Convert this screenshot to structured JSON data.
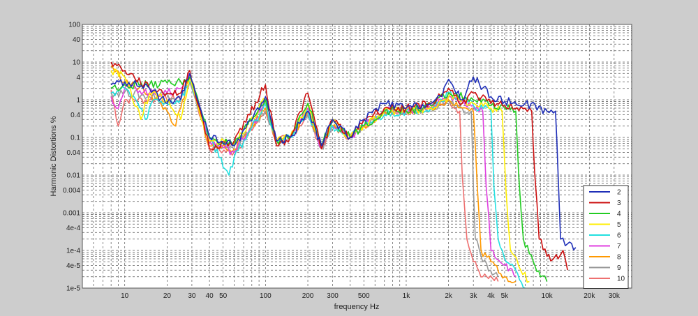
{
  "chart_data": {
    "type": "line",
    "xlabel": "frequency  Hz",
    "ylabel": "Harmonic Distortions %",
    "xscale": "log",
    "yscale": "log",
    "xlim": [
      5,
      40000
    ],
    "ylim": [
      1e-05,
      100
    ],
    "grid": true,
    "legend_position": "bottom-right",
    "x_ticks": [
      {
        "v": 10,
        "label": "10"
      },
      {
        "v": 20,
        "label": "20"
      },
      {
        "v": 30,
        "label": "30"
      },
      {
        "v": 40,
        "label": "40"
      },
      {
        "v": 50,
        "label": "50"
      },
      {
        "v": 100,
        "label": "100"
      },
      {
        "v": 200,
        "label": "200"
      },
      {
        "v": 300,
        "label": "300"
      },
      {
        "v": 500,
        "label": "500"
      },
      {
        "v": 1000,
        "label": "1k"
      },
      {
        "v": 2000,
        "label": "2k"
      },
      {
        "v": 3000,
        "label": "3k"
      },
      {
        "v": 4000,
        "label": "4k"
      },
      {
        "v": 5000,
        "label": "5k"
      },
      {
        "v": 10000,
        "label": "10k"
      },
      {
        "v": 20000,
        "label": "20k"
      },
      {
        "v": 30000,
        "label": "30k"
      }
    ],
    "y_ticks": [
      {
        "v": 100,
        "label": "100"
      },
      {
        "v": 40,
        "label": "40"
      },
      {
        "v": 10,
        "label": "10"
      },
      {
        "v": 4,
        "label": "4"
      },
      {
        "v": 1,
        "label": "1"
      },
      {
        "v": 0.4,
        "label": "0.4"
      },
      {
        "v": 0.1,
        "label": "0.1"
      },
      {
        "v": 0.04,
        "label": "0.04"
      },
      {
        "v": 0.01,
        "label": "0.01"
      },
      {
        "v": 0.004,
        "label": "0.004"
      },
      {
        "v": 0.001,
        "label": "0.001"
      },
      {
        "v": 0.0004,
        "label": "4e-4"
      },
      {
        "v": 0.0001,
        "label": "1e-4"
      },
      {
        "v": 4e-05,
        "label": "4e-5"
      },
      {
        "v": 1e-05,
        "label": "1e-5"
      }
    ],
    "series": [
      {
        "name": "2",
        "color": "#1f2fb8",
        "points": [
          [
            8,
            2.5
          ],
          [
            10,
            3
          ],
          [
            15,
            2
          ],
          [
            20,
            0.8
          ],
          [
            25,
            1
          ],
          [
            29,
            5
          ],
          [
            35,
            0.5
          ],
          [
            40,
            0.1
          ],
          [
            60,
            0.06
          ],
          [
            100,
            1.2
          ],
          [
            120,
            0.08
          ],
          [
            150,
            0.1
          ],
          [
            200,
            0.5
          ],
          [
            250,
            0.06
          ],
          [
            300,
            0.3
          ],
          [
            400,
            0.1
          ],
          [
            500,
            0.3
          ],
          [
            700,
            0.8
          ],
          [
            1000,
            0.6
          ],
          [
            1500,
            0.8
          ],
          [
            1800,
            1.2
          ],
          [
            2000,
            3.5
          ],
          [
            2500,
            1
          ],
          [
            3000,
            4
          ],
          [
            4000,
            1.2
          ],
          [
            5000,
            0.9
          ],
          [
            7000,
            0.8
          ],
          [
            10000,
            0.5
          ],
          [
            11500,
            0.5
          ],
          [
            12000,
            0.01
          ],
          [
            12500,
            0.0002
          ],
          [
            14000,
            0.00015
          ],
          [
            16000,
            0.00012
          ]
        ]
      },
      {
        "name": "3",
        "color": "#cc1010",
        "points": [
          [
            8,
            10
          ],
          [
            10,
            6
          ],
          [
            15,
            2
          ],
          [
            20,
            1.5
          ],
          [
            25,
            1.5
          ],
          [
            29,
            6
          ],
          [
            35,
            0.4
          ],
          [
            40,
            0.05
          ],
          [
            60,
            0.08
          ],
          [
            100,
            2.5
          ],
          [
            120,
            0.06
          ],
          [
            150,
            0.1
          ],
          [
            200,
            1.5
          ],
          [
            250,
            0.05
          ],
          [
            300,
            0.3
          ],
          [
            400,
            0.1
          ],
          [
            500,
            0.3
          ],
          [
            700,
            0.6
          ],
          [
            1000,
            0.6
          ],
          [
            1500,
            0.8
          ],
          [
            2000,
            2
          ],
          [
            2500,
            0.8
          ],
          [
            3000,
            1.5
          ],
          [
            4000,
            0.8
          ],
          [
            5000,
            0.7
          ],
          [
            7000,
            0.6
          ],
          [
            7800,
            0.5
          ],
          [
            8200,
            0.01
          ],
          [
            8800,
            0.0002
          ],
          [
            10000,
            7e-05
          ],
          [
            12000,
            6e-05
          ],
          [
            13000,
            0.0001
          ],
          [
            14000,
            3e-05
          ]
        ]
      },
      {
        "name": "4",
        "color": "#22cc22",
        "points": [
          [
            8,
            2
          ],
          [
            10,
            2.5
          ],
          [
            15,
            2.5
          ],
          [
            20,
            2.8
          ],
          [
            25,
            3
          ],
          [
            29,
            4
          ],
          [
            35,
            0.5
          ],
          [
            40,
            0.1
          ],
          [
            60,
            0.06
          ],
          [
            100,
            1
          ],
          [
            120,
            0.08
          ],
          [
            150,
            0.1
          ],
          [
            200,
            0.8
          ],
          [
            250,
            0.06
          ],
          [
            300,
            0.3
          ],
          [
            400,
            0.1
          ],
          [
            500,
            0.2
          ],
          [
            700,
            0.5
          ],
          [
            1000,
            0.5
          ],
          [
            1500,
            0.7
          ],
          [
            2000,
            1.5
          ],
          [
            3000,
            1
          ],
          [
            4000,
            0.7
          ],
          [
            5000,
            0.6
          ],
          [
            6000,
            0.5
          ],
          [
            6300,
            0.01
          ],
          [
            6800,
            0.0002
          ],
          [
            8000,
            5e-05
          ],
          [
            9000,
            2e-05
          ],
          [
            10000,
            1.5e-05
          ]
        ]
      },
      {
        "name": "5",
        "color": "#ffee00",
        "points": [
          [
            8,
            6
          ],
          [
            10,
            4
          ],
          [
            13,
            0.3
          ],
          [
            15,
            1.5
          ],
          [
            20,
            1
          ],
          [
            25,
            0.3
          ],
          [
            29,
            4
          ],
          [
            35,
            0.3
          ],
          [
            40,
            0.08
          ],
          [
            60,
            0.07
          ],
          [
            100,
            1
          ],
          [
            120,
            0.08
          ],
          [
            150,
            0.1
          ],
          [
            200,
            0.8
          ],
          [
            250,
            0.05
          ],
          [
            300,
            0.3
          ],
          [
            400,
            0.1
          ],
          [
            500,
            0.2
          ],
          [
            700,
            0.5
          ],
          [
            1000,
            0.5
          ],
          [
            1500,
            0.6
          ],
          [
            2000,
            1.2
          ],
          [
            3000,
            0.8
          ],
          [
            4000,
            0.6
          ],
          [
            4800,
            0.5
          ],
          [
            5100,
            0.005
          ],
          [
            5500,
            0.0001
          ],
          [
            6500,
            3e-05
          ],
          [
            7500,
            1.5e-05
          ]
        ]
      },
      {
        "name": "6",
        "color": "#22e0e0",
        "points": [
          [
            8,
            1.5
          ],
          [
            10,
            2
          ],
          [
            12,
            1
          ],
          [
            14,
            0.3
          ],
          [
            16,
            1
          ],
          [
            20,
            0.8
          ],
          [
            25,
            1
          ],
          [
            29,
            3
          ],
          [
            35,
            0.5
          ],
          [
            40,
            0.1
          ],
          [
            55,
            0.01
          ],
          [
            60,
            0.03
          ],
          [
            100,
            0.8
          ],
          [
            120,
            0.08
          ],
          [
            150,
            0.1
          ],
          [
            200,
            0.5
          ],
          [
            250,
            0.06
          ],
          [
            300,
            0.2
          ],
          [
            400,
            0.1
          ],
          [
            500,
            0.2
          ],
          [
            700,
            0.4
          ],
          [
            1000,
            0.5
          ],
          [
            1500,
            0.6
          ],
          [
            2000,
            1.5
          ],
          [
            2500,
            1
          ],
          [
            3000,
            0.7
          ],
          [
            4000,
            0.5
          ],
          [
            4200,
            0.005
          ],
          [
            4500,
            0.0002
          ],
          [
            5000,
            6e-05
          ],
          [
            6000,
            3e-05
          ],
          [
            7000,
            1e-05
          ]
        ]
      },
      {
        "name": "7",
        "color": "#e040e0",
        "points": [
          [
            8,
            1.2
          ],
          [
            9,
            0.6
          ],
          [
            10,
            2
          ],
          [
            12,
            2
          ],
          [
            15,
            1.5
          ],
          [
            20,
            1.5
          ],
          [
            25,
            2
          ],
          [
            29,
            5
          ],
          [
            35,
            0.4
          ],
          [
            40,
            0.08
          ],
          [
            60,
            0.04
          ],
          [
            100,
            0.8
          ],
          [
            120,
            0.08
          ],
          [
            150,
            0.1
          ],
          [
            200,
            0.6
          ],
          [
            250,
            0.05
          ],
          [
            300,
            0.2
          ],
          [
            400,
            0.1
          ],
          [
            500,
            0.2
          ],
          [
            700,
            0.5
          ],
          [
            1000,
            0.5
          ],
          [
            1500,
            0.7
          ],
          [
            2000,
            1.2
          ],
          [
            3000,
            0.7
          ],
          [
            3500,
            0.5
          ],
          [
            3700,
            0.005
          ],
          [
            4000,
            0.0001
          ],
          [
            5000,
            4e-05
          ],
          [
            6000,
            2e-05
          ]
        ]
      },
      {
        "name": "8",
        "color": "#ff9900",
        "points": [
          [
            8,
            8
          ],
          [
            10,
            3
          ],
          [
            15,
            1.5
          ],
          [
            20,
            0.5
          ],
          [
            23,
            0.2
          ],
          [
            25,
            0.6
          ],
          [
            29,
            4
          ],
          [
            35,
            0.3
          ],
          [
            40,
            0.06
          ],
          [
            60,
            0.05
          ],
          [
            100,
            0.6
          ],
          [
            120,
            0.08
          ],
          [
            150,
            0.1
          ],
          [
            200,
            0.5
          ],
          [
            250,
            0.05
          ],
          [
            300,
            0.2
          ],
          [
            400,
            0.1
          ],
          [
            500,
            0.2
          ],
          [
            700,
            0.5
          ],
          [
            1000,
            0.5
          ],
          [
            1500,
            0.6
          ],
          [
            2000,
            1
          ],
          [
            2500,
            0.6
          ],
          [
            3000,
            0.5
          ],
          [
            3200,
            0.005
          ],
          [
            3400,
            0.0001
          ],
          [
            4000,
            5e-05
          ],
          [
            5000,
            2e-05
          ],
          [
            6000,
            1.5e-05
          ]
        ]
      },
      {
        "name": "9",
        "color": "#999999",
        "points": [
          [
            8,
            1.5
          ],
          [
            10,
            1.6
          ],
          [
            15,
            1.2
          ],
          [
            20,
            1.5
          ],
          [
            25,
            1
          ],
          [
            29,
            3
          ],
          [
            35,
            0.3
          ],
          [
            40,
            0.07
          ],
          [
            60,
            0.05
          ],
          [
            100,
            0.5
          ],
          [
            120,
            0.08
          ],
          [
            150,
            0.1
          ],
          [
            200,
            0.4
          ],
          [
            250,
            0.05
          ],
          [
            300,
            0.2
          ],
          [
            400,
            0.1
          ],
          [
            500,
            0.2
          ],
          [
            700,
            0.5
          ],
          [
            1000,
            0.5
          ],
          [
            1500,
            0.6
          ],
          [
            2000,
            1
          ],
          [
            2500,
            0.6
          ],
          [
            2900,
            0.5
          ],
          [
            3000,
            0.005
          ],
          [
            3100,
            0.0002
          ],
          [
            3500,
            5e-05
          ],
          [
            4500,
            2e-05
          ]
        ]
      },
      {
        "name": "10",
        "color": "#ee7070",
        "points": [
          [
            8,
            1.8
          ],
          [
            9,
            0.2
          ],
          [
            10,
            1
          ],
          [
            15,
            1
          ],
          [
            20,
            1
          ],
          [
            25,
            1.2
          ],
          [
            29,
            4
          ],
          [
            35,
            0.3
          ],
          [
            40,
            0.05
          ],
          [
            60,
            0.04
          ],
          [
            100,
            0.5
          ],
          [
            120,
            0.08
          ],
          [
            150,
            0.1
          ],
          [
            200,
            0.4
          ],
          [
            250,
            0.05
          ],
          [
            300,
            0.2
          ],
          [
            400,
            0.1
          ],
          [
            500,
            0.2
          ],
          [
            700,
            0.5
          ],
          [
            1000,
            0.5
          ],
          [
            1500,
            0.6
          ],
          [
            2000,
            1
          ],
          [
            2400,
            0.5
          ],
          [
            2500,
            0.01
          ],
          [
            2700,
            0.0002
          ],
          [
            3000,
            5e-05
          ],
          [
            3500,
            2e-05
          ],
          [
            4500,
            1.5e-05
          ]
        ]
      }
    ]
  }
}
